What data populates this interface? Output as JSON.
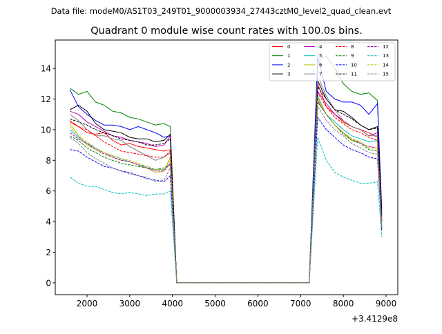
{
  "chart_data": {
    "type": "line",
    "suptitle": "Data file: modeM0/AS1T03_249T01_9000003934_27443cztM0_level2_quad_clean.evt",
    "title": "Quadrant 0 module wise count rates with 100.0s bins.",
    "xlabel": "",
    "ylabel": "",
    "x_offset_label": "+3.4129e8",
    "xlim": [
      1256,
      9275
    ],
    "ylim": [
      -0.77,
      15.85
    ],
    "xticks": [
      2000,
      3000,
      4000,
      5000,
      6000,
      7000,
      8000,
      9000
    ],
    "yticks": [
      0,
      2,
      4,
      6,
      8,
      10,
      12,
      14
    ],
    "grid": false,
    "legend_position": "top-right",
    "x": [
      1600,
      1800,
      2000,
      2200,
      2400,
      2600,
      2800,
      3000,
      3200,
      3400,
      3600,
      3800,
      3950,
      4100,
      7200,
      7400,
      7600,
      7800,
      8000,
      8200,
      8400,
      8600,
      8800,
      8900
    ],
    "series": [
      {
        "name": "0",
        "color": "#ff0000",
        "dash": false,
        "values": [
          10.5,
          10.2,
          9.8,
          9.7,
          9.8,
          9.3,
          9.0,
          9.1,
          8.9,
          8.8,
          8.7,
          8.6,
          8.7,
          0,
          0,
          13,
          11.5,
          11,
          10.5,
          10.2,
          10,
          9.8,
          9.5,
          4
        ]
      },
      {
        "name": "1",
        "color": "#008000",
        "dash": false,
        "values": [
          12.7,
          12.3,
          12.5,
          11.8,
          11.6,
          11.2,
          11.1,
          10.8,
          10.7,
          10.5,
          10.3,
          10.4,
          10.2,
          0,
          0,
          14.5,
          14.8,
          14,
          13,
          12.5,
          12.3,
          12.4,
          11.9,
          4
        ]
      },
      {
        "name": "2",
        "color": "#0000ff",
        "dash": false,
        "values": [
          12.6,
          11.5,
          11.0,
          10.6,
          10.3,
          10.3,
          10.2,
          10.0,
          10.2,
          10.0,
          9.8,
          9.5,
          9.6,
          0,
          0,
          14.8,
          12.5,
          12,
          11.8,
          11.8,
          11.6,
          11,
          11.7,
          4.8
        ]
      },
      {
        "name": "3",
        "color": "#000000",
        "dash": false,
        "values": [
          11.3,
          11.6,
          11.2,
          10.4,
          10.0,
          9.9,
          9.8,
          9.5,
          9.4,
          9.4,
          9.2,
          9.3,
          9.7,
          0,
          0,
          13.2,
          12,
          11.3,
          11.2,
          10.8,
          10.3,
          10,
          10.2,
          4.5
        ]
      },
      {
        "name": "4",
        "color": "#bf00bf",
        "dash": false,
        "values": [
          11.2,
          11.0,
          10.5,
          10.2,
          9.9,
          9.6,
          9.5,
          9.3,
          9.2,
          9.1,
          8.9,
          9.0,
          9.6,
          0,
          0,
          12.5,
          11.7,
          11,
          10.6,
          10.2,
          10,
          9.6,
          9.8,
          4.2
        ]
      },
      {
        "name": "5",
        "color": "#00bfbf",
        "dash": false,
        "values": [
          10.0,
          9.5,
          9.1,
          8.8,
          8.5,
          8.3,
          8.1,
          7.9,
          7.7,
          7.6,
          7.4,
          7.4,
          7.8,
          0,
          0,
          12.2,
          11,
          10.5,
          10,
          9.6,
          9.4,
          9.2,
          9.3,
          3.6
        ]
      },
      {
        "name": "6",
        "color": "#bfbf00",
        "dash": false,
        "values": [
          10.4,
          9.6,
          9.0,
          8.7,
          8.5,
          8.2,
          8.0,
          7.9,
          7.7,
          7.5,
          7.2,
          7.3,
          8.2,
          0,
          0,
          12.1,
          11,
          10.3,
          9.8,
          9.3,
          9.2,
          8.8,
          8.8,
          3.6
        ]
      },
      {
        "name": "7",
        "color": "#808080",
        "dash": false,
        "values": [
          11.0,
          10.6,
          10.0,
          9.6,
          9.6,
          9.4,
          9.3,
          8.9,
          8.6,
          8.3,
          8.0,
          8.2,
          8.5,
          0,
          0,
          13.5,
          12.2,
          11.3,
          10.6,
          10.2,
          10,
          9.6,
          9.6,
          4
        ]
      },
      {
        "name": "8",
        "color": "#ff0000",
        "dash": true,
        "values": [
          10.6,
          10.2,
          10.0,
          9.6,
          9.2,
          8.9,
          8.6,
          8.5,
          8.4,
          8.3,
          8.2,
          8.2,
          8.6,
          0,
          0,
          12.4,
          11.5,
          10.8,
          10.4,
          10,
          9.8,
          9.5,
          9.3,
          4
        ]
      },
      {
        "name": "9",
        "color": "#008000",
        "dash": true,
        "values": [
          9.6,
          9.3,
          8.8,
          8.5,
          8.2,
          8.0,
          7.8,
          7.7,
          7.6,
          7.5,
          7.4,
          7.5,
          7.7,
          0,
          0,
          11.8,
          11,
          10.3,
          9.7,
          9.3,
          9.1,
          8.7,
          8.6,
          3.5
        ]
      },
      {
        "name": "10",
        "color": "#0000ff",
        "dash": true,
        "values": [
          8.7,
          8.6,
          8.2,
          7.9,
          7.6,
          7.5,
          7.3,
          7.2,
          7.0,
          6.8,
          6.7,
          6.6,
          7.0,
          0,
          0,
          10.8,
          10,
          9.5,
          9,
          8.7,
          8.5,
          8.2,
          8.1,
          3.4
        ]
      },
      {
        "name": "11",
        "color": "#000000",
        "dash": true,
        "values": [
          10.7,
          10.5,
          10.3,
          10.0,
          9.8,
          9.6,
          9.4,
          9.3,
          9.2,
          9.0,
          9.0,
          9.1,
          9.4,
          0,
          0,
          12.8,
          12,
          11.3,
          11,
          10.7,
          10.3,
          10,
          10.1,
          4.3
        ]
      },
      {
        "name": "12",
        "color": "#bf00bf",
        "dash": true,
        "values": [
          9.8,
          9.4,
          9.1,
          8.7,
          8.4,
          8.2,
          8.0,
          7.9,
          7.7,
          7.5,
          7.3,
          7.3,
          7.8,
          0,
          0,
          11.9,
          11,
          10.3,
          9.8,
          9.4,
          9.1,
          8.9,
          8.8,
          3.6
        ]
      },
      {
        "name": "13",
        "color": "#00bfbf",
        "dash": true,
        "values": [
          6.9,
          6.5,
          6.3,
          6.3,
          6.1,
          5.9,
          5.8,
          5.9,
          5.8,
          5.7,
          5.8,
          5.8,
          6.0,
          0,
          0,
          9.5,
          8,
          7.2,
          6.9,
          6.7,
          6.5,
          6.5,
          6.6,
          3
        ]
      },
      {
        "name": "14",
        "color": "#bfbf00",
        "dash": true,
        "values": [
          10.2,
          9.6,
          9.2,
          8.8,
          8.5,
          8.3,
          8.1,
          8.0,
          7.8,
          7.6,
          7.4,
          7.4,
          8.0,
          0,
          0,
          12,
          11,
          10.3,
          9.8,
          9.4,
          9.2,
          8.8,
          8.8,
          3.7
        ]
      },
      {
        "name": "15",
        "color": "#808080",
        "dash": true,
        "values": [
          9.5,
          9.1,
          8.5,
          8.1,
          7.8,
          7.5,
          7.3,
          7.1,
          7.0,
          6.9,
          6.6,
          6.7,
          7.5,
          0,
          0,
          11.5,
          10.6,
          10,
          9.6,
          9.1,
          8.8,
          8.5,
          8.4,
          3.6
        ]
      }
    ]
  }
}
